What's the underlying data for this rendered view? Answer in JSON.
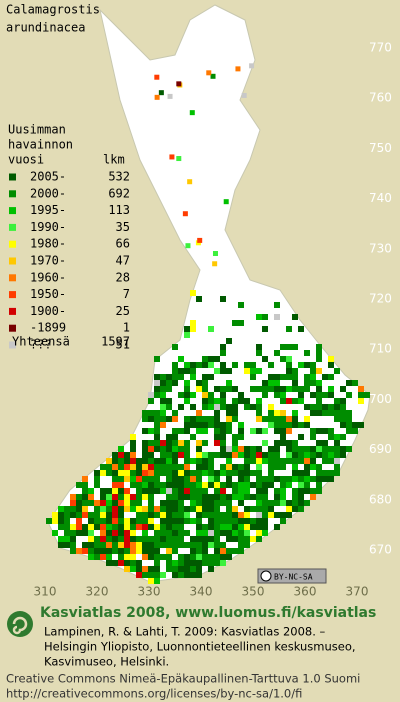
{
  "title": [
    "Calamagrostis",
    "arundinacea"
  ],
  "legend": {
    "heading": [
      "Uusimman",
      "havainnon",
      "vuosi"
    ],
    "count_heading": "lkm",
    "rows": [
      {
        "label": "2005-",
        "count": 532,
        "color": "#005a00"
      },
      {
        "label": "2000-",
        "count": 692,
        "color": "#008c00"
      },
      {
        "label": "1995-",
        "count": 113,
        "color": "#00c000"
      },
      {
        "label": "1990-",
        "count": 35,
        "color": "#3cf03c"
      },
      {
        "label": "1980-",
        "count": 66,
        "color": "#ffff00"
      },
      {
        "label": "1970-",
        "count": 47,
        "color": "#ffc800"
      },
      {
        "label": "1960-",
        "count": 28,
        "color": "#ff7800"
      },
      {
        "label": "1950-",
        "count": 7,
        "color": "#ff3c00"
      },
      {
        "label": "1900-",
        "count": 25,
        "color": "#d20000"
      },
      {
        "label": "-1899",
        "count": 1,
        "color": "#780000"
      },
      {
        "label": "???",
        "count": 51,
        "color": "#c8c8c8"
      }
    ],
    "total_label": "Yhteensä",
    "total": 1597
  },
  "y_labels": [
    "770",
    "760",
    "750",
    "740",
    "730",
    "720",
    "710",
    "700",
    "690",
    "680",
    "670"
  ],
  "x_labels": [
    "310",
    "320",
    "330",
    "340",
    "350",
    "360",
    "370"
  ],
  "badge": "BY-NC-SA",
  "footer": {
    "heading": "Kasviatlas 2008, www.luomus.fi/kasviatlas",
    "citation": [
      "Lampinen, R. & Lahti, T. 2009: Kasviatlas 2008. –",
      "Helsingin Yliopisto, Luonnontieteellinen keskusmuseo,",
      "Kasvimuseo, Helsinki."
    ],
    "license": [
      "Creative Commons Nimeä-Epäkaupallinen-Tarttuva 1.0 Suomi",
      "http://creativecommons.org/licenses/by-nc-sa/1.0/fi"
    ]
  }
}
